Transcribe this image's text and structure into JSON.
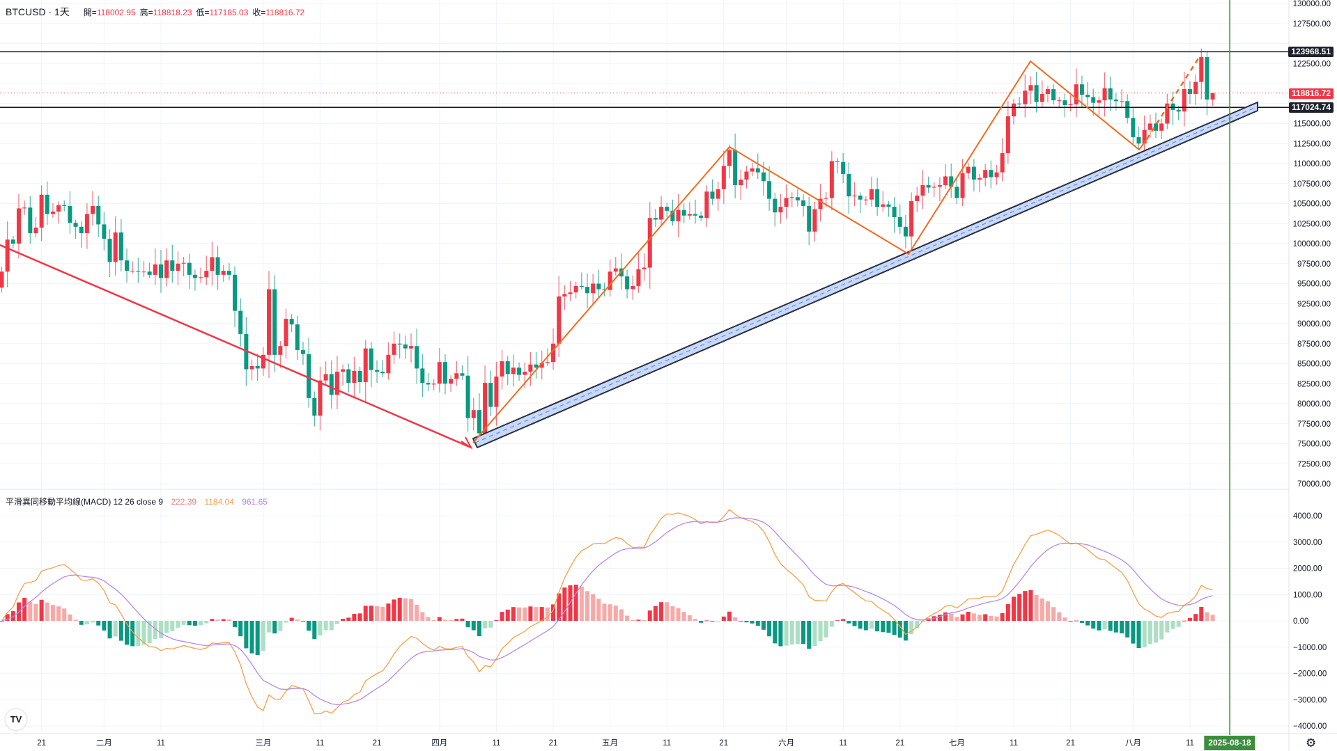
{
  "header": {
    "symbol": "BTCUSD · 1天",
    "open_label": "開=",
    "open": "118002.95",
    "high_label": "高=",
    "high": "118818.23",
    "low_label": "低=",
    "low": "117185.03",
    "close_label": "收=",
    "close": "118816.72"
  },
  "macd_legend": {
    "title": "平滑異同移動平均線(MACD) 12 26 close 9",
    "histogram": "222.39",
    "macd": "1184.04",
    "signal": "961.65"
  },
  "price_tags": {
    "resistance": "123968.51",
    "last": "118816.72",
    "support": "117024.74"
  },
  "crosshair_date": "2025-08-18",
  "icons": {
    "logo": "tradingview-logo",
    "logo_text": "TV",
    "settings": "gear-icon"
  },
  "colors": {
    "up": "#f23645",
    "down": "#089981",
    "macd": "#f5a04a",
    "signal": "#b58ae6",
    "hist_label": "#f77c80",
    "crosshair": "#3b8e3b"
  },
  "time_axis": [
    {
      "label": "21",
      "date": "2025-01-21"
    },
    {
      "label": "二月",
      "date": "2025-02-01"
    },
    {
      "label": "11",
      "date": "2025-02-11"
    },
    {
      "label": "三月",
      "date": "2025-03-01"
    },
    {
      "label": "11",
      "date": "2025-03-11"
    },
    {
      "label": "21",
      "date": "2025-03-21"
    },
    {
      "label": "四月",
      "date": "2025-04-01"
    },
    {
      "label": "11",
      "date": "2025-04-11"
    },
    {
      "label": "21",
      "date": "2025-04-21"
    },
    {
      "label": "五月",
      "date": "2025-05-01"
    },
    {
      "label": "11",
      "date": "2025-05-11"
    },
    {
      "label": "21",
      "date": "2025-05-21"
    },
    {
      "label": "六月",
      "date": "2025-06-01"
    },
    {
      "label": "11",
      "date": "2025-06-11"
    },
    {
      "label": "21",
      "date": "2025-06-21"
    },
    {
      "label": "七月",
      "date": "2025-07-01"
    },
    {
      "label": "11",
      "date": "2025-07-11"
    },
    {
      "label": "21",
      "date": "2025-07-21"
    },
    {
      "label": "八月",
      "date": "2025-08-01"
    },
    {
      "label": "11",
      "date": "2025-08-11"
    }
  ],
  "chart_data": {
    "type": "candlestick",
    "title": "BTCUSD 1天",
    "start_date": "2025-01-14",
    "first_open": 94500,
    "price_axis": {
      "min": 70000,
      "max": 130000,
      "step": 2500
    },
    "macd_axis": {
      "min": -4000,
      "max": 4000,
      "step": 1000
    },
    "closes_k": [
      96.5,
      100.5,
      100.0,
      104.4,
      104.5,
      101.3,
      102.0,
      106.1,
      103.7,
      104.0,
      104.8,
      104.7,
      102.6,
      102.1,
      101.3,
      103.7,
      104.7,
      102.4,
      100.6,
      97.7,
      101.4,
      97.9,
      96.6,
      96.6,
      96.5,
      96.5,
      96.1,
      97.4,
      95.7,
      97.9,
      96.6,
      97.5,
      97.6,
      96.1,
      95.7,
      95.8,
      96.6,
      98.3,
      96.1,
      96.6,
      96.1,
      91.6,
      88.7,
      84.3,
      84.7,
      84.4,
      86.1,
      94.3,
      86.1,
      87.2,
      90.6,
      89.9,
      86.7,
      86.2,
      80.7,
      78.5,
      82.9,
      83.7,
      81.1,
      84.0,
      84.3,
      82.6,
      84.1,
      82.7,
      86.9,
      84.2,
      84.0,
      83.8,
      86.1,
      87.5,
      87.4,
      86.9,
      87.2,
      84.4,
      82.6,
      82.4,
      82.5,
      85.2,
      82.5,
      83.1,
      83.8,
      83.5,
      78.2,
      79.2,
      76.3,
      82.6,
      79.6,
      83.4,
      85.3,
      83.7,
      84.5,
      83.6,
      84.0,
      84.9,
      84.5,
      85.1,
      85.2,
      87.5,
      93.4,
      93.7,
      93.9,
      94.7,
      94.6,
      93.8,
      95.0,
      94.3,
      94.2,
      96.5,
      96.9,
      95.9,
      94.3,
      94.7,
      96.8,
      97.0,
      103.2,
      103.0,
      104.6,
      104.1,
      102.8,
      104.2,
      103.5,
      103.7,
      103.5,
      103.2,
      106.5,
      105.6,
      106.8,
      109.7,
      111.7,
      107.3,
      108.0,
      109.0,
      109.4,
      108.9,
      107.8,
      105.6,
      103.9,
      104.6,
      105.7,
      105.8,
      105.4,
      104.7,
      101.5,
      104.3,
      105.6,
      105.7,
      110.3,
      110.2,
      108.7,
      105.9,
      106.0,
      105.5,
      105.5,
      106.8,
      104.6,
      104.9,
      104.6,
      103.3,
      102.1,
      100.9,
      105.3,
      106.0,
      107.3,
      107.0,
      107.1,
      107.3,
      108.4,
      107.1,
      105.7,
      108.8,
      109.6,
      108.0,
      108.2,
      109.2,
      108.3,
      108.9,
      111.3,
      115.9,
      117.5,
      117.4,
      119.1,
      119.8,
      117.7,
      118.7,
      119.3,
      117.9,
      117.9,
      117.3,
      117.4,
      119.9,
      118.6,
      118.3,
      117.6,
      117.9,
      119.4,
      118.0,
      117.8,
      117.8,
      115.7,
      113.3,
      112.5,
      114.2,
      115.0,
      114.1,
      115.0,
      117.5,
      116.7,
      116.5,
      119.3,
      118.7,
      120.2,
      123.3,
      118.00295,
      118.81672
    ],
    "ath_high": 123968.51,
    "last_candle": {
      "open": 118002.95,
      "high": 118818.23,
      "low": 117185.03,
      "close": 118816.72
    },
    "macd_params": {
      "fast": 12,
      "slow": 26,
      "signal": 9,
      "source": "close"
    }
  }
}
